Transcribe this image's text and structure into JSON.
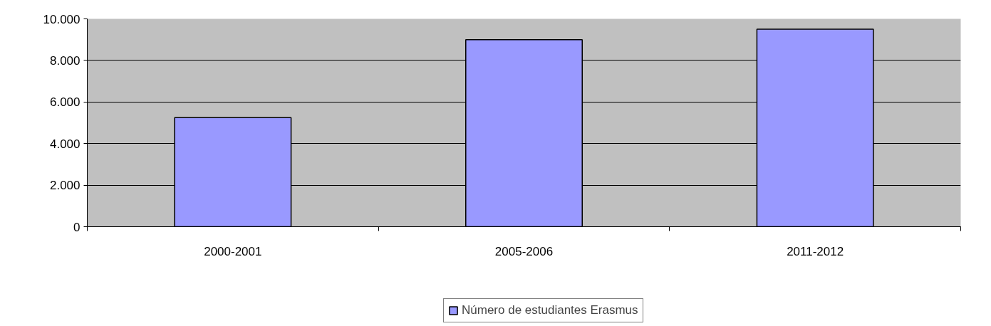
{
  "chart_data": {
    "type": "bar",
    "categories": [
      "2000-2001",
      "2005-2006",
      "2011-2012"
    ],
    "series": [
      {
        "name": "Número de estudiantes Erasmus",
        "color": "#9999ff",
        "values": [
          5250,
          9000,
          9500
        ]
      }
    ],
    "ylim": [
      0,
      10000
    ],
    "yticks": [
      {
        "value": 0,
        "label": "0"
      },
      {
        "value": 2000,
        "label": "2.000"
      },
      {
        "value": 4000,
        "label": "4.000"
      },
      {
        "value": 6000,
        "label": "6.000"
      },
      {
        "value": 8000,
        "label": "8.000"
      },
      {
        "value": 10000,
        "label": "10.000"
      }
    ],
    "grid": "y",
    "legend": "bottom"
  }
}
